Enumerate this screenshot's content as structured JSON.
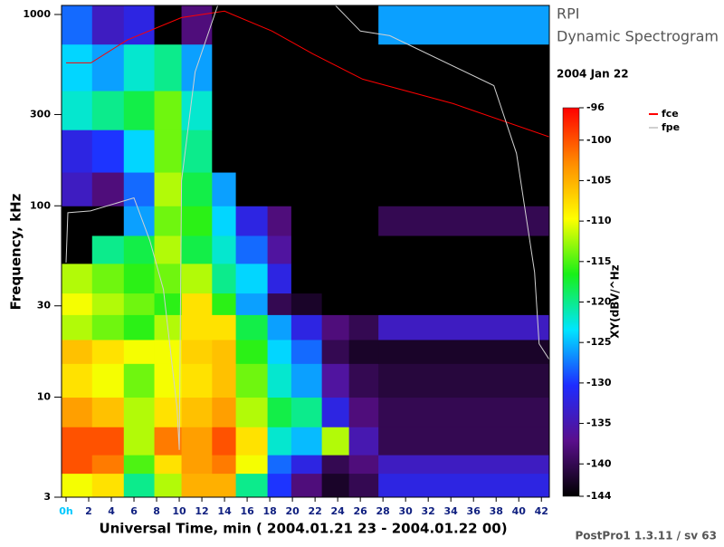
{
  "chart_data": {
    "type": "heatmap",
    "title": "RPI",
    "subtitle": "Dynamic Spectrogram",
    "date": "2004 Jan 22",
    "footer": "PostPro1 1.3.11 / sv 63",
    "xlabel": "Universal Time, min ( 2004.01.21 23 - 2004.01.22 00)",
    "ylabel": "Frequency, kHz",
    "zlabel": "XY(dBV/^Hz",
    "yscale": "log",
    "xlim": [
      -0.4,
      42.7
    ],
    "ylim": [
      3,
      1115
    ],
    "xticks": [
      {
        "value": 0,
        "label": "0h"
      },
      2,
      4,
      6,
      8,
      10,
      12,
      14,
      16,
      18,
      20,
      22,
      24,
      26,
      28,
      30,
      32,
      34,
      36,
      38,
      40,
      42
    ],
    "yticks": [
      3,
      10,
      30,
      100,
      300,
      1000
    ],
    "zlim": [
      -144,
      -96
    ],
    "zticks": [
      -96,
      -100,
      -105,
      -110,
      -115,
      -120,
      -125,
      -130,
      -135,
      -140,
      -144
    ],
    "colorscale": [
      "#000000",
      "#5a0f8c",
      "#1e2cff",
      "#00e5ff",
      "#18f018",
      "#ffff00",
      "#ff8c00",
      "#ff0000"
    ],
    "x_edges": [
      -0.4,
      2.3,
      5.1,
      7.8,
      10.2,
      12.9,
      15,
      17.8,
      19.9,
      22.6,
      25,
      27.6,
      42.7
    ],
    "y_edges": [
      3,
      4,
      5,
      7,
      10,
      15,
      20,
      27,
      35,
      50,
      70,
      100,
      150,
      250,
      400,
      700,
      1115
    ],
    "z": [
      [
        -110,
        -108,
        -120,
        -112,
        -105,
        -105,
        -120,
        -130,
        -138,
        -142,
        -140,
        -132
      ],
      [
        -100,
        -102,
        -115,
        -108,
        -104,
        -102,
        -110,
        -128,
        -132,
        -140,
        -138,
        -134
      ],
      [
        -100,
        -100,
        -112,
        -102,
        -104,
        -100,
        -108,
        -122,
        -125,
        -112,
        -135,
        -140
      ],
      [
        -104,
        -106,
        -112,
        -108,
        -106,
        -104,
        -112,
        -118,
        -120,
        -132,
        -138,
        -140
      ],
      [
        -108,
        -110,
        -114,
        -110,
        -108,
        -106,
        -114,
        -122,
        -126,
        -136,
        -140,
        -141
      ],
      [
        -106,
        -108,
        -110,
        -110,
        -107,
        -106,
        -116,
        -124,
        -128,
        -140,
        -142,
        -142
      ],
      [
        -112,
        -114,
        -116,
        -112,
        -108,
        -108,
        -118,
        -126,
        -132,
        -138,
        -140,
        -134
      ],
      [
        -110,
        -112,
        -114,
        -116,
        -108,
        -116,
        -126,
        -140,
        -142,
        -144,
        -144,
        -144
      ],
      [
        -112,
        -114,
        -116,
        -114,
        -112,
        -120,
        -124,
        -132,
        -144,
        -144,
        -144,
        -144
      ],
      [
        -144,
        -120,
        -118,
        -112,
        -118,
        -122,
        -128,
        -136,
        -144,
        -144,
        -144,
        -144
      ],
      [
        -144,
        -144,
        -126,
        -114,
        -116,
        -124,
        -132,
        -138,
        -144,
        -144,
        -144,
        -140
      ],
      [
        -134,
        -138,
        -128,
        -112,
        -118,
        -126,
        -144,
        -144,
        -144,
        -144,
        -144,
        -144
      ],
      [
        -132,
        -130,
        -124,
        -114,
        -120,
        -144,
        -144,
        -144,
        -144,
        -144,
        -144,
        -144
      ],
      [
        -122,
        -120,
        -118,
        -114,
        -122,
        -144,
        -144,
        -144,
        -144,
        -144,
        -144,
        -144
      ],
      [
        -124,
        -126,
        -122,
        -120,
        -126,
        -144,
        -144,
        -144,
        -144,
        -144,
        -144,
        -144
      ],
      [
        -128,
        -134,
        -132,
        -144,
        -138,
        -144,
        -144,
        -144,
        -144,
        -144,
        -144,
        -126
      ]
    ],
    "series": [
      {
        "name": "fce",
        "color": "#ff0000",
        "x": [
          0,
          2.2,
          5.4,
          10.2,
          14,
          18.2,
          21.8,
          26.2,
          34.2,
          42.7
        ],
        "values": [
          559,
          559,
          735,
          964,
          1041,
          819,
          623,
          459,
          342,
          229
        ]
      },
      {
        "name": "fpe",
        "color": "#d0d0d0",
        "x": [
          0,
          0.16,
          2.16,
          6,
          7.4,
          8.6,
          9.8,
          10,
          10.2,
          11.4,
          13.4,
          18,
          23.8,
          26,
          28.6,
          37.8,
          39.8,
          41.4,
          41.8,
          42.7
        ],
        "values": [
          50.5,
          92,
          94,
          110,
          66,
          36.5,
          8.8,
          5.3,
          135,
          501,
          1115,
          null,
          1115,
          819,
          775,
          425,
          188,
          45,
          19,
          15.7
        ]
      }
    ]
  }
}
